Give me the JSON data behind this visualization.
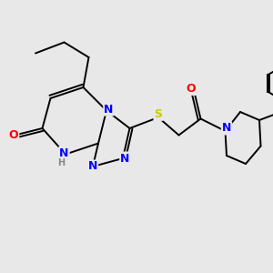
{
  "background_color": "#e8e8e8",
  "bond_lw": 1.4,
  "atom_colors": {
    "N": "#0000FF",
    "O": "#FF0000",
    "S": "#CCCC00",
    "H": "#888888",
    "C": "#000000"
  },
  "xlim": [
    0,
    10
  ],
  "ylim": [
    0,
    10
  ],
  "figsize": [
    3.0,
    3.0
  ],
  "dpi": 100
}
